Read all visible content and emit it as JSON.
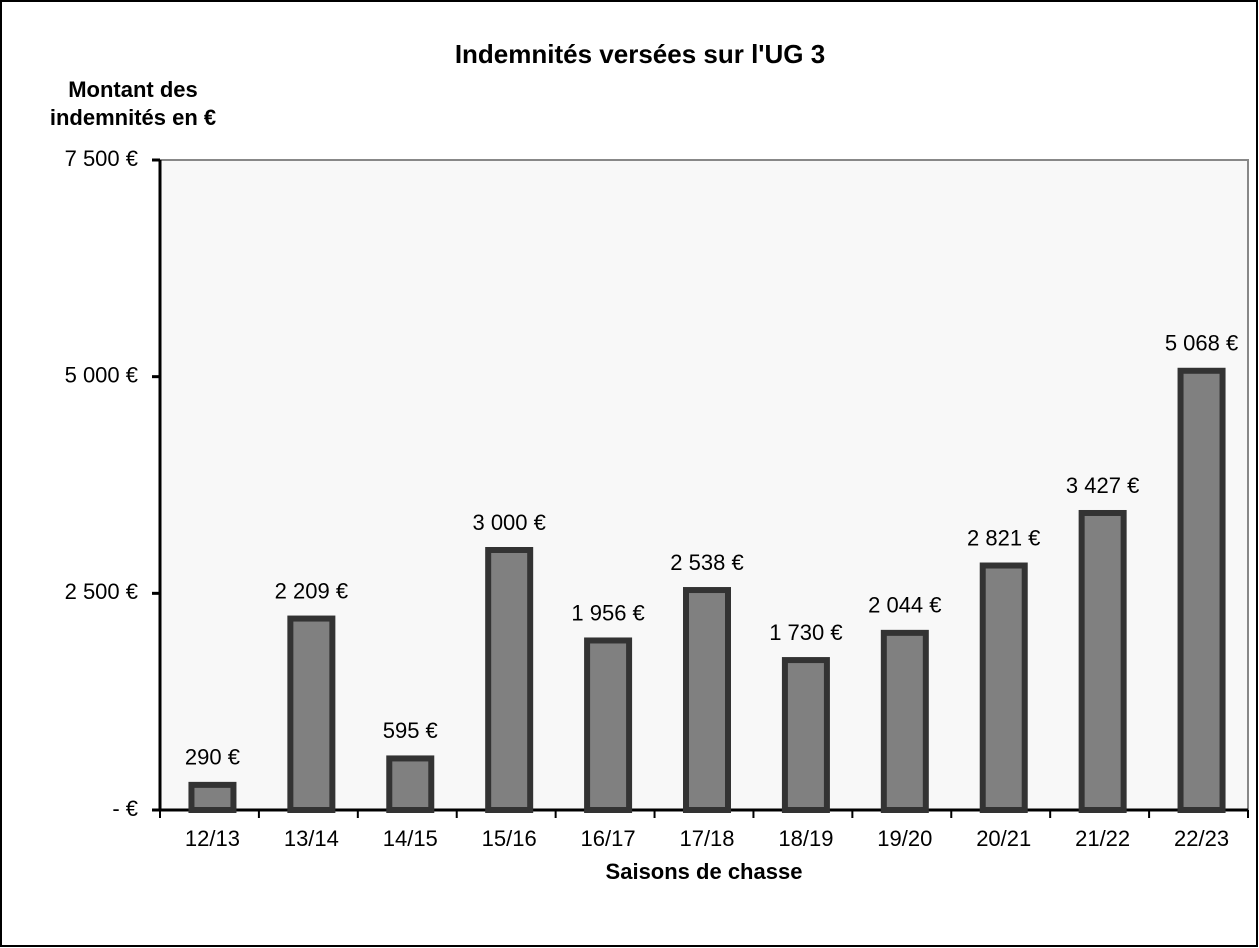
{
  "chart_data": {
    "type": "bar",
    "title": "Indemnités versées sur l'UG 3",
    "y_label": "Montant des indemnités en €",
    "x_label": "Saisons de chasse",
    "categories": [
      "12/13",
      "13/14",
      "14/15",
      "15/16",
      "16/17",
      "17/18",
      "18/19",
      "19/20",
      "20/21",
      "21/22",
      "22/23"
    ],
    "values": [
      290,
      2209,
      595,
      3000,
      1956,
      2538,
      1730,
      2044,
      2821,
      3427,
      5068
    ],
    "value_labels": [
      "290 €",
      "2 209 €",
      "595 €",
      "3 000 €",
      "1 956 €",
      "2 538 €",
      "1 730 €",
      "2 044 €",
      "2 821 €",
      "3 427 €",
      "5 068 €"
    ],
    "color": "#808080",
    "ylim": [
      0,
      7500
    ],
    "yticks": [
      {
        "value": 0,
        "label": "-   €"
      },
      {
        "value": 2500,
        "label": "2 500 €"
      },
      {
        "value": 5000,
        "label": "5 000 €"
      },
      {
        "value": 7500,
        "label": "7 500 €"
      }
    ],
    "grid": false
  }
}
